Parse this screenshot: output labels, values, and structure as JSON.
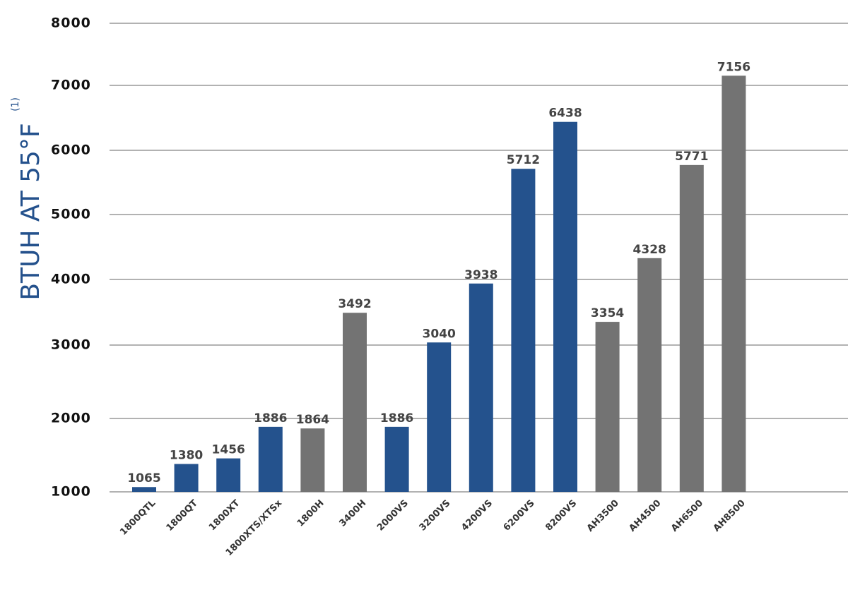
{
  "chart_data": {
    "type": "bar",
    "ylabel": "BTUH AT 55°F",
    "ylabel_note": "(1)",
    "categories": [
      "1800QTL",
      "1800QT",
      "1800XT",
      "1800XTS/XTSx",
      "1800H",
      "3400H",
      "2000VS",
      "3200VS",
      "4200VS",
      "6200VS",
      "8200VS",
      "AH3500",
      "AH4500",
      "AH6500",
      "AH8500"
    ],
    "values": [
      1065,
      1380,
      1456,
      1886,
      1864,
      3492,
      1886,
      3040,
      3938,
      5712,
      6438,
      3354,
      4328,
      5771,
      7156
    ],
    "colors": [
      "#24528d",
      "#24528d",
      "#24528d",
      "#24528d",
      "#737373",
      "#737373",
      "#24528d",
      "#24528d",
      "#24528d",
      "#24528d",
      "#24528d",
      "#737373",
      "#737373",
      "#737373",
      "#737373"
    ],
    "ylim": [
      1000,
      8000
    ],
    "yticks": [
      1000,
      2000,
      3000,
      4000,
      5000,
      6000,
      7000,
      8000
    ],
    "grid": true
  }
}
